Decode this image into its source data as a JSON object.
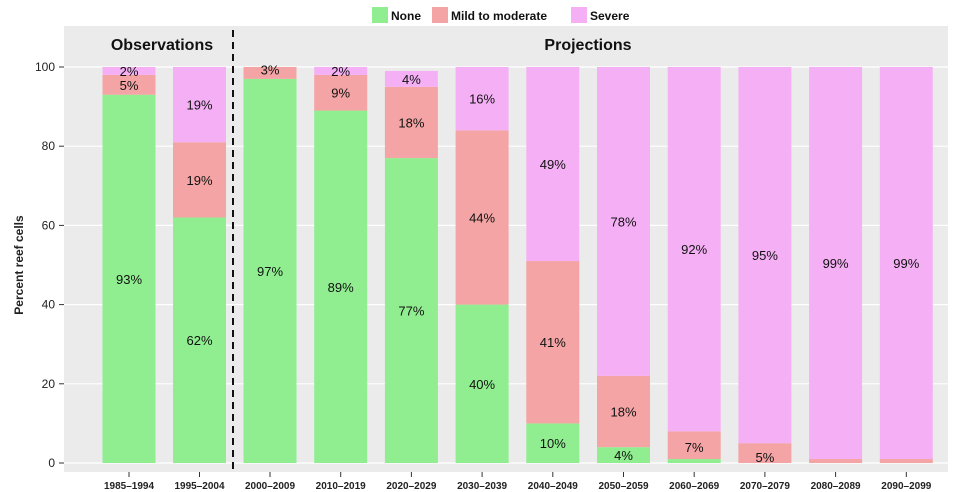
{
  "chart_data": {
    "type": "bar",
    "stacked": true,
    "ylabel": "Percent reef cells",
    "ylim": [
      0,
      100
    ],
    "yticks": [
      "0",
      "20",
      "40",
      "60",
      "80",
      "100"
    ],
    "grid": true,
    "legend_position": "top-center",
    "panel_titles": {
      "observations": "Observations",
      "projections": "Projections"
    },
    "categories": [
      "1985–1994",
      "1995–2004",
      "2000–2009",
      "2010–2019",
      "2020–2029",
      "2030–2039",
      "2040–2049",
      "2050–2059",
      "2060–2069",
      "2070–2079",
      "2080–2089",
      "2090–2099"
    ],
    "observation_count": 2,
    "series": [
      {
        "name": "None",
        "color": "#90ee90",
        "values": [
          93,
          62,
          97,
          89,
          77,
          40,
          10,
          4,
          1,
          0,
          0,
          0
        ],
        "labels": [
          "93%",
          "62%",
          "97%",
          "89%",
          "77%",
          "40%",
          "10%",
          "4%",
          "",
          "",
          "",
          ""
        ]
      },
      {
        "name": "Mild to moderate",
        "color": "#f4a4a4",
        "values": [
          5,
          19,
          3,
          9,
          18,
          44,
          41,
          18,
          7,
          5,
          1,
          1
        ],
        "labels": [
          "5%",
          "19%",
          "3%",
          "9%",
          "18%",
          "44%",
          "41%",
          "18%",
          "7%",
          "5%",
          "",
          ""
        ]
      },
      {
        "name": "Severe",
        "color": "#f5b0f5",
        "values": [
          2,
          19,
          0,
          2,
          4,
          16,
          49,
          78,
          92,
          95,
          99,
          99
        ],
        "labels": [
          "2%",
          "19%",
          "",
          "2%",
          "4%",
          "16%",
          "49%",
          "78%",
          "92%",
          "95%",
          "99%",
          "99%"
        ]
      }
    ]
  }
}
